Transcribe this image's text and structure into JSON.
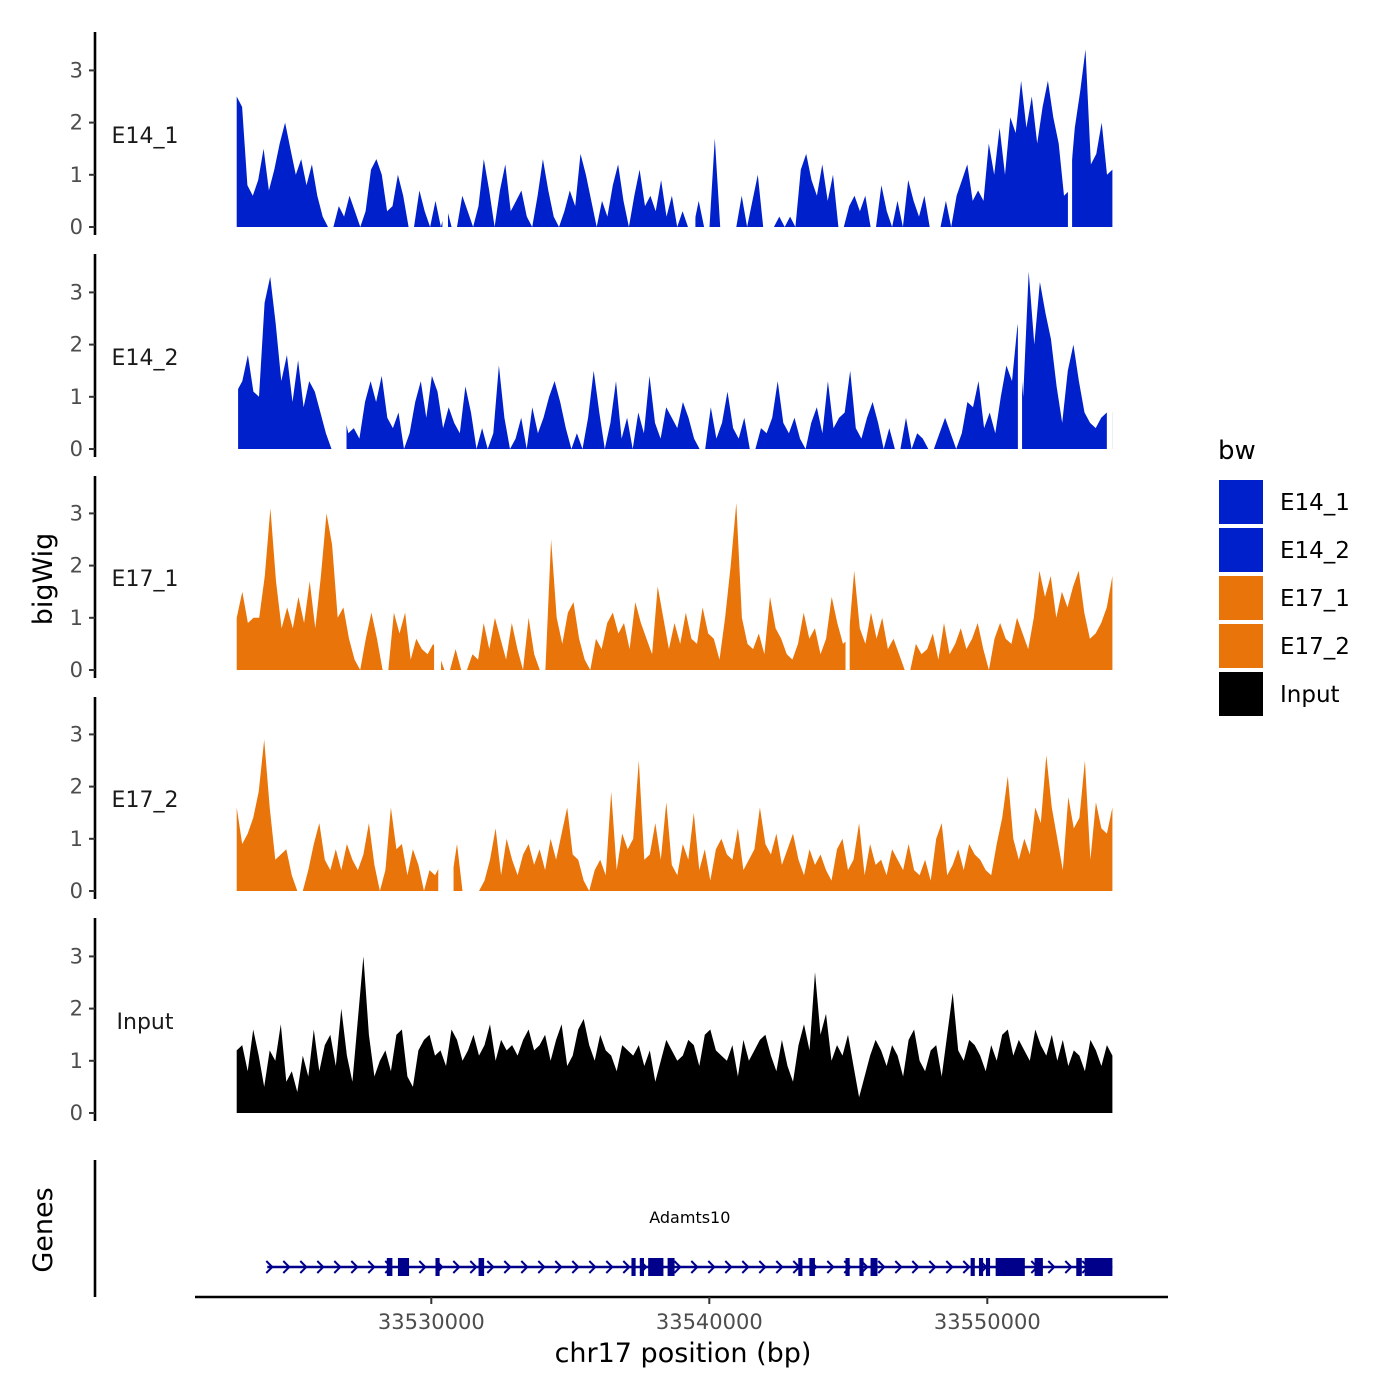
{
  "chart_data": {
    "type": "area",
    "subtype": "genome coverage tracks (bigWig) with gene annotation",
    "chromosome": "chr17",
    "xlabel": "chr17 position (bp)",
    "ylabel": "bigWig",
    "xlim": [
      33521500,
      33556500
    ],
    "x_ticks": [
      33530000,
      33540000,
      33550000
    ],
    "x_tick_labels": [
      "33530000",
      "33540000",
      "33550000"
    ],
    "y_ticks": [
      0,
      1,
      2,
      3
    ],
    "y_tick_labels": [
      "0",
      "1",
      "2",
      "3"
    ],
    "ylim": [
      0,
      3.8
    ],
    "region_start": 33523000,
    "region_end": 33554500,
    "series": [
      {
        "name": "E14_1",
        "color": "#0020CC",
        "values": [
          2.5,
          2.3,
          0.8,
          0.6,
          0.9,
          1.5,
          0.7,
          1.1,
          1.6,
          2.0,
          1.5,
          1.0,
          1.3,
          0.8,
          1.2,
          0.6,
          0.2,
          0.0,
          0.0,
          0.4,
          0.2,
          0.6,
          0.3,
          0.0,
          0.3,
          1.1,
          1.3,
          1.0,
          0.3,
          0.4,
          1.0,
          0.6,
          0.0,
          0.0,
          0.7,
          0.3,
          0.0,
          0.5,
          0.0,
          0.4,
          0.0,
          0.0,
          0.6,
          0.3,
          0.0,
          0.4,
          1.3,
          0.7,
          0.0,
          0.7,
          1.2,
          0.3,
          0.5,
          0.7,
          0.2,
          0.0,
          0.6,
          1.3,
          0.7,
          0.2,
          0.0,
          0.3,
          0.7,
          0.4,
          1.4,
          1.0,
          0.5,
          0.0,
          0.5,
          0.2,
          0.8,
          1.2,
          0.5,
          0.0,
          0.6,
          1.1,
          0.4,
          0.6,
          0.3,
          0.9,
          0.2,
          0.6,
          0.0,
          0.3,
          0.0,
          0.0,
          0.5,
          0.0,
          0.0,
          1.7,
          0.0,
          0.0,
          0.0,
          0.0,
          0.6,
          0.0,
          0.5,
          1.0,
          0.0,
          0.0,
          0.0,
          0.2,
          0.0,
          0.2,
          0.0,
          1.1,
          1.4,
          0.9,
          0.6,
          1.2,
          0.5,
          1.0,
          0.0,
          0.0,
          0.4,
          0.6,
          0.3,
          0.6,
          0.0,
          0.0,
          0.8,
          0.3,
          0.0,
          0.5,
          0.0,
          0.9,
          0.5,
          0.2,
          0.6,
          0.0,
          0.0,
          0.0,
          0.5,
          0.0,
          0.6,
          0.9,
          1.2,
          0.5,
          0.7,
          0.5,
          1.6,
          1.0,
          1.9,
          1.0,
          2.1,
          1.8,
          2.8,
          1.9,
          2.5,
          1.6,
          2.3,
          2.8,
          2.1,
          1.6,
          0.6,
          0.7,
          1.9,
          2.6,
          3.4,
          1.2,
          1.4,
          2.0,
          1.0,
          1.1
        ],
        "gaps": [
          [
            33530400,
            33530600
          ],
          [
            33539250,
            33539500
          ],
          [
            33552900,
            33553050
          ]
        ]
      },
      {
        "name": "E14_2",
        "color": "#0020CC",
        "values": [
          1.1,
          1.3,
          1.8,
          1.1,
          1.0,
          2.8,
          3.3,
          2.4,
          1.3,
          1.8,
          0.9,
          1.7,
          0.8,
          1.3,
          1.1,
          0.7,
          0.3,
          0.0,
          0.0,
          0.8,
          0.3,
          0.4,
          0.2,
          0.9,
          1.3,
          0.9,
          1.4,
          0.6,
          0.4,
          0.7,
          0.0,
          0.3,
          0.9,
          1.3,
          0.6,
          1.4,
          1.1,
          0.4,
          0.8,
          0.5,
          0.3,
          1.2,
          0.7,
          0.0,
          0.4,
          0.0,
          0.3,
          1.6,
          0.6,
          0.0,
          0.2,
          0.6,
          0.0,
          0.8,
          0.3,
          0.6,
          1.0,
          1.3,
          0.9,
          0.4,
          0.0,
          0.3,
          0.0,
          0.6,
          1.5,
          0.7,
          0.0,
          0.5,
          1.3,
          0.2,
          0.6,
          0.0,
          0.7,
          0.3,
          1.4,
          0.5,
          0.2,
          0.8,
          0.6,
          0.4,
          0.9,
          0.6,
          0.2,
          0.0,
          0.0,
          0.8,
          0.2,
          0.5,
          1.1,
          0.4,
          0.2,
          0.6,
          0.0,
          0.0,
          0.4,
          0.3,
          0.6,
          1.3,
          0.5,
          0.3,
          0.6,
          0.2,
          0.0,
          0.5,
          0.8,
          0.3,
          1.3,
          0.4,
          0.6,
          0.7,
          1.5,
          0.4,
          0.2,
          0.6,
          0.9,
          0.5,
          0.0,
          0.4,
          0.0,
          0.0,
          0.6,
          0.0,
          0.3,
          0.2,
          0.0,
          0.0,
          0.3,
          0.6,
          0.3,
          0.0,
          0.3,
          0.9,
          0.8,
          1.3,
          0.4,
          0.7,
          0.3,
          1.0,
          1.6,
          1.3,
          2.4,
          1.0,
          3.4,
          2.0,
          3.2,
          2.6,
          2.1,
          1.2,
          0.5,
          1.5,
          2.0,
          1.3,
          0.7,
          0.5,
          0.4,
          0.6,
          0.7,
          0.7
        ],
        "gaps": [
          [
            33522800,
            33523050
          ],
          [
            33526600,
            33526950
          ],
          [
            33551100,
            33551250
          ],
          [
            33554300,
            33554500
          ]
        ]
      },
      {
        "name": "E17_1",
        "color": "#E8740A",
        "values": [
          1.0,
          1.5,
          0.9,
          1.0,
          1.0,
          1.8,
          3.1,
          1.7,
          0.8,
          1.2,
          0.8,
          1.4,
          0.9,
          1.7,
          0.8,
          1.8,
          3.0,
          2.4,
          1.0,
          1.2,
          0.6,
          0.2,
          0.0,
          0.6,
          1.1,
          0.6,
          0.0,
          0.0,
          1.1,
          0.7,
          1.1,
          0.2,
          0.6,
          0.4,
          0.3,
          0.5,
          0.3,
          0.0,
          0.0,
          0.4,
          0.0,
          0.0,
          0.3,
          0.2,
          0.9,
          0.4,
          1.0,
          0.6,
          0.2,
          0.9,
          0.4,
          0.0,
          1.0,
          0.3,
          0.0,
          0.0,
          2.5,
          1.0,
          0.5,
          1.1,
          1.3,
          0.6,
          0.2,
          0.0,
          0.6,
          0.4,
          0.9,
          1.1,
          0.7,
          0.9,
          0.4,
          1.3,
          0.9,
          0.6,
          0.3,
          1.6,
          1.0,
          0.4,
          0.9,
          0.5,
          1.1,
          0.6,
          0.5,
          1.2,
          0.7,
          0.6,
          0.2,
          1.0,
          2.0,
          3.2,
          1.0,
          0.5,
          0.4,
          0.7,
          0.3,
          1.4,
          0.8,
          0.6,
          0.3,
          0.2,
          0.5,
          1.1,
          0.6,
          0.8,
          0.3,
          0.6,
          1.4,
          0.9,
          0.5,
          0.6,
          1.9,
          0.8,
          0.5,
          1.1,
          0.6,
          1.0,
          0.4,
          0.6,
          0.3,
          0.0,
          0.0,
          0.5,
          0.3,
          0.4,
          0.7,
          0.2,
          0.9,
          0.3,
          0.5,
          0.8,
          0.4,
          0.6,
          0.9,
          0.4,
          0.0,
          0.6,
          0.9,
          0.6,
          0.5,
          1.0,
          0.7,
          0.4,
          1.0,
          1.9,
          1.4,
          1.8,
          1.0,
          1.5,
          1.2,
          1.6,
          1.9,
          1.1,
          0.6,
          0.7,
          0.9,
          1.2,
          1.8
        ],
        "gaps": [
          [
            33530100,
            33530350
          ],
          [
            33544900,
            33545050
          ]
        ]
      },
      {
        "name": "E17_2",
        "color": "#E8740A",
        "values": [
          1.6,
          0.9,
          1.1,
          1.4,
          1.9,
          2.9,
          1.6,
          0.6,
          0.7,
          0.8,
          0.3,
          0.0,
          0.0,
          0.4,
          0.9,
          1.3,
          0.6,
          0.4,
          0.8,
          0.4,
          0.9,
          0.6,
          0.4,
          0.7,
          1.3,
          0.5,
          0.0,
          0.4,
          1.6,
          0.8,
          0.9,
          0.3,
          0.8,
          0.5,
          0.0,
          0.4,
          0.3,
          0.5,
          0.6,
          0.2,
          0.9,
          0.0,
          0.0,
          0.0,
          0.0,
          0.2,
          0.6,
          1.2,
          0.3,
          1.0,
          0.6,
          0.3,
          0.7,
          0.9,
          0.5,
          0.8,
          0.4,
          1.0,
          0.6,
          1.1,
          1.6,
          0.7,
          0.6,
          0.2,
          0.0,
          0.4,
          0.6,
          0.3,
          1.9,
          0.4,
          1.1,
          0.8,
          1.0,
          2.5,
          0.6,
          0.7,
          1.3,
          0.6,
          1.7,
          0.5,
          0.3,
          0.9,
          0.6,
          1.5,
          0.4,
          0.8,
          0.2,
          0.8,
          1.0,
          0.7,
          0.6,
          1.2,
          0.4,
          0.6,
          0.8,
          1.6,
          0.9,
          0.7,
          1.1,
          0.5,
          0.8,
          1.1,
          0.6,
          0.3,
          0.8,
          0.5,
          0.7,
          0.4,
          0.2,
          0.8,
          1.0,
          0.4,
          0.6,
          1.3,
          0.3,
          0.9,
          0.5,
          0.6,
          0.3,
          0.8,
          0.6,
          0.4,
          0.9,
          0.4,
          0.3,
          0.6,
          0.2,
          1.0,
          1.3,
          0.3,
          0.5,
          0.8,
          0.4,
          0.9,
          0.7,
          0.6,
          0.4,
          0.3,
          0.9,
          1.4,
          2.2,
          1.0,
          0.6,
          1.0,
          0.7,
          1.6,
          1.3,
          2.6,
          1.6,
          1.0,
          0.4,
          1.8,
          1.2,
          1.4,
          2.5,
          0.6,
          1.7,
          1.2,
          1.1,
          1.6
        ],
        "gaps": [
          [
            33530250,
            33530800
          ]
        ]
      },
      {
        "name": "Input",
        "color": "#000000",
        "values": [
          1.2,
          1.3,
          0.8,
          1.6,
          1.1,
          0.5,
          1.2,
          1.0,
          1.7,
          0.6,
          0.8,
          0.4,
          1.1,
          0.7,
          1.6,
          0.8,
          1.3,
          1.5,
          0.9,
          2.0,
          1.1,
          0.6,
          1.8,
          3.0,
          1.5,
          0.7,
          1.0,
          1.2,
          0.8,
          1.5,
          1.6,
          0.7,
          0.5,
          1.2,
          1.4,
          1.5,
          1.1,
          1.2,
          0.9,
          1.6,
          1.4,
          1.0,
          1.2,
          1.5,
          1.1,
          1.3,
          1.7,
          1.0,
          1.4,
          1.2,
          1.3,
          1.1,
          1.4,
          1.6,
          1.2,
          1.3,
          1.5,
          1.0,
          1.4,
          1.7,
          0.9,
          1.1,
          1.6,
          1.8,
          1.3,
          1.0,
          1.5,
          1.2,
          1.1,
          0.8,
          1.3,
          1.2,
          1.1,
          1.3,
          0.9,
          1.2,
          0.6,
          1.0,
          1.4,
          1.2,
          1.0,
          1.1,
          1.4,
          1.3,
          0.9,
          1.5,
          1.6,
          1.2,
          1.1,
          1.0,
          1.3,
          0.7,
          1.4,
          1.0,
          1.2,
          1.4,
          1.5,
          1.1,
          0.8,
          1.4,
          0.9,
          0.6,
          1.3,
          1.7,
          1.2,
          2.7,
          1.5,
          1.9,
          1.0,
          1.3,
          1.1,
          1.5,
          0.9,
          0.3,
          0.7,
          1.1,
          1.4,
          1.2,
          0.9,
          1.3,
          1.1,
          0.7,
          1.4,
          1.6,
          1.0,
          0.8,
          1.2,
          1.3,
          0.7,
          1.5,
          2.3,
          1.2,
          1.0,
          1.4,
          1.3,
          1.1,
          0.8,
          1.3,
          1.0,
          1.5,
          1.6,
          1.1,
          1.4,
          1.2,
          1.0,
          1.6,
          1.3,
          1.1,
          1.5,
          1.0,
          1.4,
          0.9,
          1.2,
          1.1,
          0.8,
          1.4,
          1.2,
          0.9,
          1.3,
          1.1
        ],
        "gaps": []
      }
    ],
    "legend": {
      "title": "bw",
      "entries": [
        {
          "label": "E14_1",
          "color": "#0020CC"
        },
        {
          "label": "E14_2",
          "color": "#0020CC"
        },
        {
          "label": "E17_1",
          "color": "#E8740A"
        },
        {
          "label": "E17_2",
          "color": "#E8740A"
        },
        {
          "label": "Input",
          "color": "#000000"
        }
      ],
      "position": "right"
    },
    "gene_track": {
      "title": "Genes",
      "color": "#00008B",
      "genes": [
        {
          "name": "Adamts10",
          "strand": "+",
          "start": 33524100,
          "end": 33554500,
          "exons": [
            [
              33528400,
              33528600
            ],
            [
              33528800,
              33529200
            ],
            [
              33530150,
              33530300
            ],
            [
              33531700,
              33531900
            ],
            [
              33537200,
              33537350
            ],
            [
              33537500,
              33537650
            ],
            [
              33537800,
              33538350
            ],
            [
              33538500,
              33538750
            ],
            [
              33543200,
              33543350
            ],
            [
              33543600,
              33543800
            ],
            [
              33544900,
              33545050
            ],
            [
              33545400,
              33545550
            ],
            [
              33545800,
              33546050
            ],
            [
              33549400,
              33549550
            ],
            [
              33549700,
              33549850
            ],
            [
              33549950,
              33550100
            ],
            [
              33550300,
              33551350
            ],
            [
              33551700,
              33552000
            ],
            [
              33553200,
              33553400
            ],
            [
              33553500,
              33554500
            ]
          ]
        }
      ]
    }
  }
}
